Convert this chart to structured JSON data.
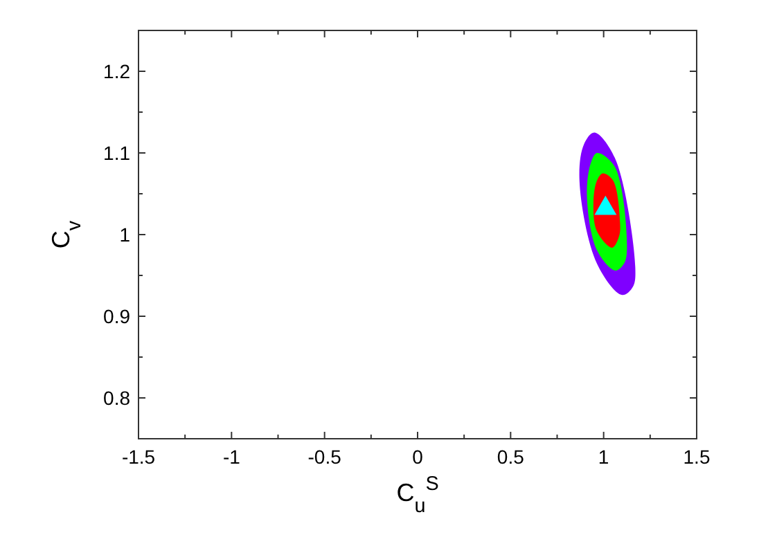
{
  "chart_data": {
    "type": "area",
    "xlabel": "C$_{u}$$^{S}$",
    "ylabel": "C$_{v}$",
    "xlim": [
      -1.5,
      1.5
    ],
    "ylim": [
      0.75,
      1.25
    ],
    "xticks": [
      -1.5,
      {
        "value": -1.25,
        "label": null
      },
      -1,
      {
        "value": -0.75,
        "label": null
      },
      -0.5,
      {
        "value": -0.25,
        "label": null
      },
      0,
      {
        "value": 0.25,
        "label": null
      },
      0.5,
      {
        "value": 0.75,
        "label": null
      },
      1,
      {
        "value": 1.25,
        "label": null
      },
      1.5
    ],
    "yticks": [
      {
        "value": 0.75,
        "label": null
      },
      0.8,
      {
        "value": 0.85,
        "label": null
      },
      0.9,
      {
        "value": 0.95,
        "label": null
      },
      1,
      {
        "value": 1.05,
        "label": null
      },
      1.1,
      {
        "value": 1.15,
        "label": null
      },
      1.2,
      {
        "value": 1.25,
        "label": null
      }
    ],
    "series": [
      {
        "color": "#7f00ff",
        "x": [
          0.95,
          1.06,
          1.17,
          1.157,
          1.1,
          0.965,
          0.87,
          0.895
        ],
        "values": [
          1.125,
          1.094,
          0.96,
          0.936,
          0.926,
          0.964,
          1.066,
          1.111
        ]
      },
      {
        "color": "#00ff00",
        "x": [
          0.965,
          1.06,
          1.125,
          1.108,
          1.063,
          0.964,
          0.91,
          0.933
        ],
        "values": [
          1.1,
          1.083,
          0.981,
          0.964,
          0.956,
          0.981,
          1.049,
          1.089
        ]
      },
      {
        "color": "#ff0000",
        "x": [
          0.996,
          1.051,
          1.088,
          1.083,
          1.046,
          0.964,
          0.945,
          0.964
        ],
        "values": [
          1.075,
          1.066,
          1.015,
          0.998,
          0.984,
          1.004,
          1.038,
          1.066
        ]
      },
      {
        "type": "scatter",
        "color": "#00ffff",
        "marker": "triangle",
        "x": [
          1.01
        ],
        "values": [
          1.032
        ]
      }
    ]
  }
}
